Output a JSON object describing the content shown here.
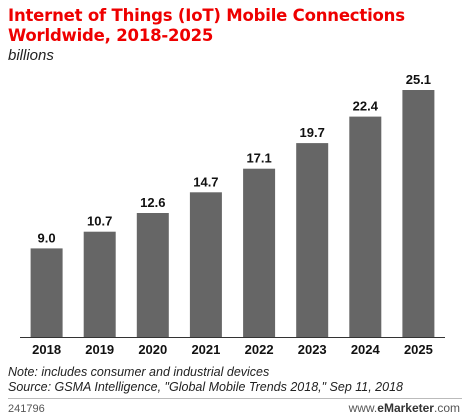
{
  "chart_data": {
    "type": "bar",
    "title": "Internet of Things (IoT) Mobile Connections Worldwide, 2018-2025",
    "subtitle": "billions",
    "categories": [
      "2018",
      "2019",
      "2020",
      "2021",
      "2022",
      "2023",
      "2024",
      "2025"
    ],
    "values": [
      9.0,
      10.7,
      12.6,
      14.7,
      17.1,
      19.7,
      22.4,
      25.1
    ],
    "value_labels": [
      "9.0",
      "10.7",
      "12.6",
      "14.7",
      "17.1",
      "19.7",
      "22.4",
      "25.1"
    ],
    "ylim": [
      0,
      25.1
    ],
    "bar_color": "#666666",
    "grid": false,
    "legend": "none"
  },
  "title_lines": [
    "Internet of Things (IoT) Mobile Connections",
    "Worldwide, 2018-2025"
  ],
  "footnote": {
    "note": "Note: includes consumer and industrial devices",
    "source": "Source: GSMA Intelligence, \"Global Mobile Trends 2018,\" Sep 11, 2018"
  },
  "chart_id": "241796",
  "brand": {
    "prefix": "www.",
    "name_e": "e",
    "name_rest": "Marketer",
    "suffix": ".com"
  }
}
